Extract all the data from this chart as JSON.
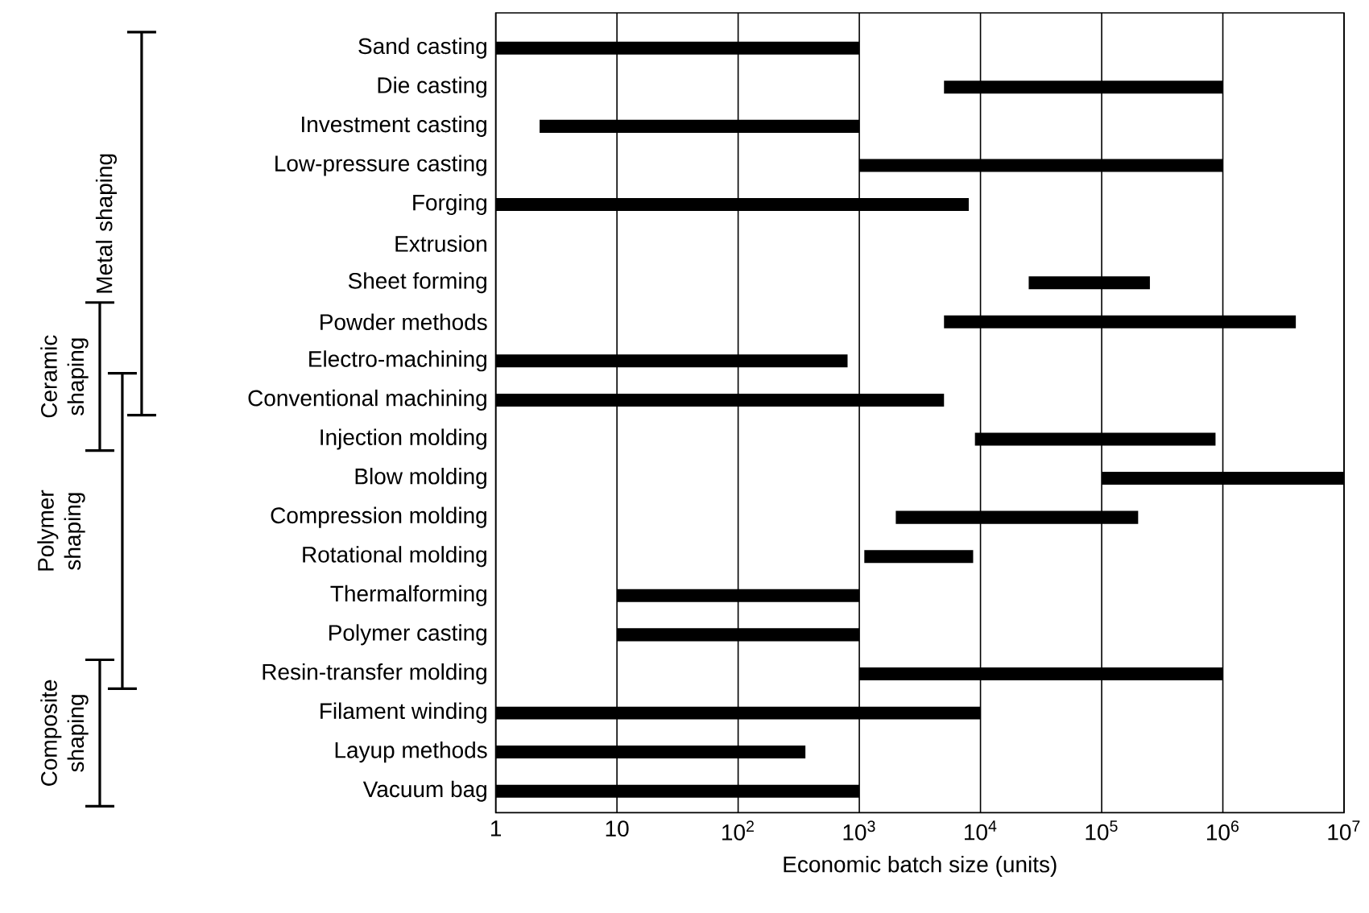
{
  "chart_data": {
    "type": "bar",
    "orientation": "horizontal",
    "log": "x",
    "grid": "x",
    "xlabel": "Economic batch size (units)",
    "categories": [
      "Sand casting",
      "Die casting",
      "Investment casting",
      "Low-pressure casting",
      "Forging",
      "Extrusion",
      "Sheet forming",
      "Powder methods",
      "Electro-machining",
      "Conventional machining",
      "Injection molding",
      "Blow molding",
      "Compression molding",
      "Rotational molding",
      "Thermalforming",
      "Polymer casting",
      "Resin-transfer molding",
      "Filament winding",
      "Layup methods",
      "Vacuum bag"
    ],
    "base": [
      1,
      5000,
      2.3,
      1000,
      1,
      null,
      25000,
      5000,
      1,
      1,
      9000,
      100000,
      2000,
      1100,
      10,
      10,
      1000,
      1,
      1,
      1
    ],
    "values": [
      999,
      995000,
      997.7,
      999000,
      7999,
      null,
      225000,
      3995000,
      799,
      4999,
      861000,
      9900000,
      198000,
      7600,
      990,
      990,
      999000,
      9999,
      359,
      999
    ],
    "color": "#000000",
    "xlim": [
      1,
      10000000
    ],
    "xticks": [
      1,
      10,
      {
        "value": 100,
        "label": "10$^{2}$"
      },
      {
        "value": 1000,
        "label": "10$^{3}$"
      },
      {
        "value": 10000,
        "label": "10$^{4}$"
      },
      {
        "value": 100000,
        "label": "10$^{5}$"
      },
      {
        "value": 1000000,
        "label": "10$^{6}$"
      },
      {
        "value": 10000000,
        "label": "10$^{7}$"
      }
    ],
    "annotations": [
      "Metal shaping",
      "Ceramic shaping",
      "Polymer shaping",
      "Composite shaping"
    ]
  }
}
